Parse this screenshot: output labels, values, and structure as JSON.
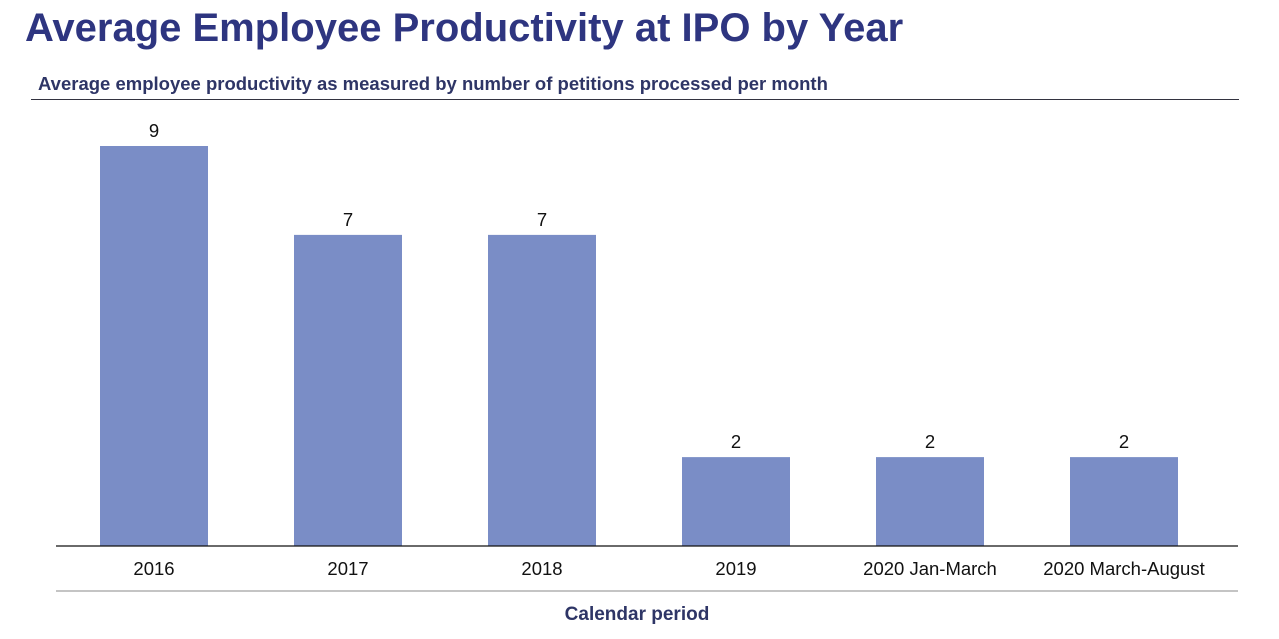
{
  "header": {
    "title": "Average Employee Productivity at IPO by Year",
    "subtitle": "Average employee productivity as measured by number of petitions processed per month"
  },
  "colors": {
    "title": "#2e3580",
    "bar": "#7a8dc6",
    "axis": "#111111"
  },
  "chart_data": {
    "type": "bar",
    "title": "Average Employee Productivity at IPO by Year",
    "subtitle": "Average employee productivity as measured by number of petitions processed per month",
    "categories": [
      "2016",
      "2017",
      "2018",
      "2019",
      "2020 Jan-March",
      "2020 March-August"
    ],
    "values": [
      9,
      7,
      7,
      2,
      2,
      2
    ],
    "data_labels": [
      "9",
      "7",
      "7",
      "2",
      "2",
      "2"
    ],
    "xlabel": "Calendar period",
    "ylabel": "",
    "ylim": [
      0,
      9
    ],
    "grid": false,
    "legend": "none"
  }
}
